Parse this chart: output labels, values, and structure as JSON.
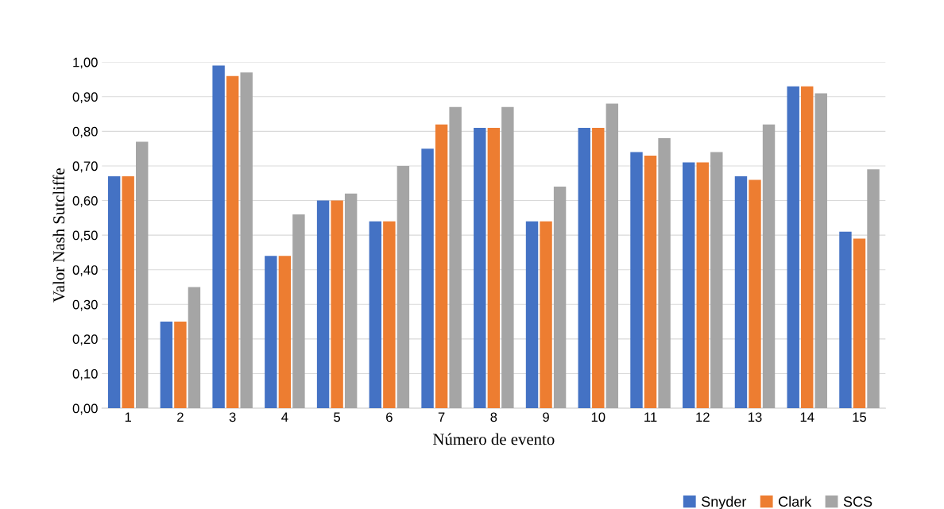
{
  "chart_data": {
    "type": "bar",
    "xlabel": "Número de evento",
    "ylabel": "Valor Nash Sutcliffe",
    "categories": [
      "1",
      "2",
      "3",
      "4",
      "5",
      "6",
      "7",
      "8",
      "9",
      "10",
      "11",
      "12",
      "13",
      "14",
      "15"
    ],
    "series": [
      {
        "name": "Snyder",
        "color": "#4472c4",
        "values": [
          0.67,
          0.25,
          0.99,
          0.44,
          0.6,
          0.54,
          0.75,
          0.81,
          0.54,
          0.81,
          0.74,
          0.71,
          0.67,
          0.93,
          0.51
        ]
      },
      {
        "name": "Clark",
        "color": "#ed7d31",
        "values": [
          0.67,
          0.25,
          0.96,
          0.44,
          0.6,
          0.54,
          0.82,
          0.81,
          0.54,
          0.81,
          0.73,
          0.71,
          0.66,
          0.93,
          0.49
        ]
      },
      {
        "name": "SCS",
        "color": "#a5a5a5",
        "values": [
          0.77,
          0.35,
          0.97,
          0.56,
          0.62,
          0.7,
          0.87,
          0.87,
          0.64,
          0.88,
          0.78,
          0.74,
          0.82,
          0.91,
          0.69
        ]
      }
    ],
    "ylim": [
      0,
      1.0
    ],
    "yticks": [
      {
        "value": 0,
        "label": "0,00"
      },
      {
        "value": 0.1,
        "label": "0,10"
      },
      {
        "value": 0.2,
        "label": "0,20"
      },
      {
        "value": 0.3,
        "label": "0,30"
      },
      {
        "value": 0.4,
        "label": "0,40"
      },
      {
        "value": 0.5,
        "label": "0,50"
      },
      {
        "value": 0.6,
        "label": "0,60"
      },
      {
        "value": 0.7,
        "label": "0,70"
      },
      {
        "value": 0.8,
        "label": "0,80"
      },
      {
        "value": 0.9,
        "label": "0,90"
      },
      {
        "value": 1.0,
        "label": "1,00"
      }
    ],
    "grid": "y",
    "legend": "bottom right"
  }
}
